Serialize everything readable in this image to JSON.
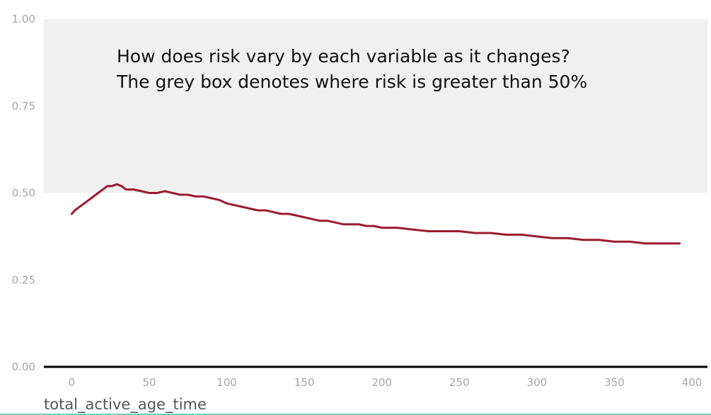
{
  "chart_data": {
    "type": "line",
    "title": "",
    "xlabel": "total_active_age_time",
    "ylabel": "",
    "xlim": [
      -18,
      410
    ],
    "ylim": [
      0,
      1.0
    ],
    "x_ticks": [
      0,
      50,
      100,
      150,
      200,
      250,
      300,
      350,
      400
    ],
    "x_tick_labels": [
      "0",
      "50",
      "100",
      "150",
      "200",
      "250",
      "300",
      "350",
      "400"
    ],
    "y_ticks": [
      0,
      0.25,
      0.5,
      0.75,
      1.0
    ],
    "y_tick_labels": [
      "0.00",
      "0.25",
      "0.50",
      "0.75",
      "1.00"
    ],
    "grid": false,
    "threshold_band": {
      "y_from": 0.5,
      "y_to": 1.0,
      "color": "#f0f0f0"
    },
    "annotation_lines": [
      "How does risk vary by each variable as it changes?",
      "The grey box denotes where risk is greater than 50%"
    ],
    "series": [
      {
        "color": "#9b1b30",
        "points": [
          [
            0,
            0.44
          ],
          [
            2,
            0.45
          ],
          [
            5,
            0.46
          ],
          [
            8,
            0.47
          ],
          [
            11,
            0.48
          ],
          [
            14,
            0.49
          ],
          [
            17,
            0.5
          ],
          [
            20,
            0.51
          ],
          [
            23,
            0.52
          ],
          [
            26,
            0.52
          ],
          [
            29,
            0.525
          ],
          [
            32,
            0.52
          ],
          [
            35,
            0.51
          ],
          [
            40,
            0.51
          ],
          [
            45,
            0.505
          ],
          [
            50,
            0.5
          ],
          [
            55,
            0.5
          ],
          [
            60,
            0.505
          ],
          [
            65,
            0.5
          ],
          [
            70,
            0.495
          ],
          [
            75,
            0.495
          ],
          [
            80,
            0.49
          ],
          [
            85,
            0.49
          ],
          [
            90,
            0.485
          ],
          [
            95,
            0.48
          ],
          [
            100,
            0.47
          ],
          [
            105,
            0.465
          ],
          [
            110,
            0.46
          ],
          [
            115,
            0.455
          ],
          [
            120,
            0.45
          ],
          [
            125,
            0.45
          ],
          [
            130,
            0.445
          ],
          [
            135,
            0.44
          ],
          [
            140,
            0.44
          ],
          [
            145,
            0.435
          ],
          [
            150,
            0.43
          ],
          [
            155,
            0.425
          ],
          [
            160,
            0.42
          ],
          [
            165,
            0.42
          ],
          [
            170,
            0.415
          ],
          [
            175,
            0.41
          ],
          [
            180,
            0.41
          ],
          [
            185,
            0.41
          ],
          [
            190,
            0.405
          ],
          [
            195,
            0.405
          ],
          [
            200,
            0.4
          ],
          [
            210,
            0.4
          ],
          [
            220,
            0.395
          ],
          [
            230,
            0.39
          ],
          [
            240,
            0.39
          ],
          [
            250,
            0.39
          ],
          [
            260,
            0.385
          ],
          [
            270,
            0.385
          ],
          [
            280,
            0.38
          ],
          [
            290,
            0.38
          ],
          [
            300,
            0.375
          ],
          [
            310,
            0.37
          ],
          [
            320,
            0.37
          ],
          [
            330,
            0.365
          ],
          [
            340,
            0.365
          ],
          [
            350,
            0.36
          ],
          [
            360,
            0.36
          ],
          [
            370,
            0.355
          ],
          [
            380,
            0.355
          ],
          [
            392,
            0.355
          ]
        ]
      }
    ]
  }
}
